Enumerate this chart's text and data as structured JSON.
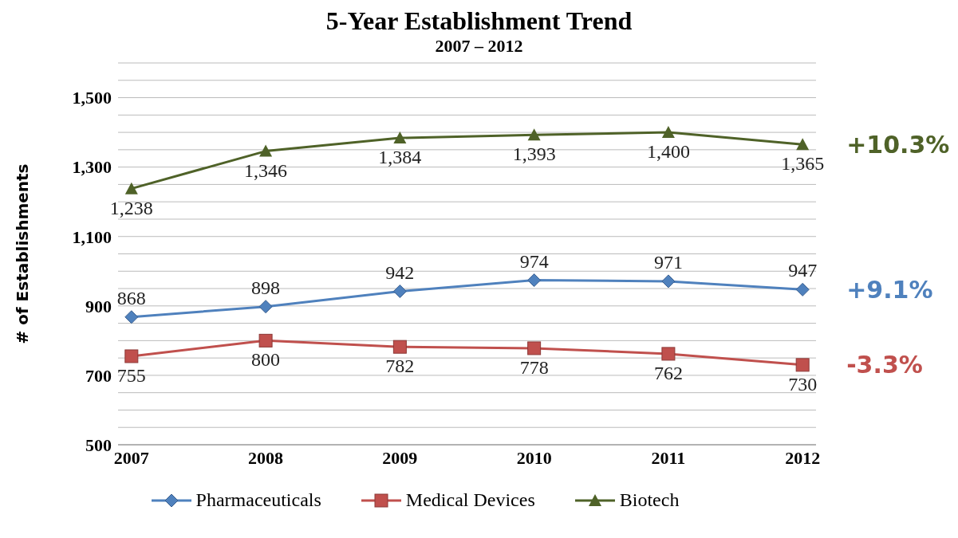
{
  "chart_data": {
    "type": "line",
    "title": "5-Year Establishment Trend",
    "subtitle": "2007 – 2012",
    "ylabel": "# of Establishments",
    "categories": [
      "2007",
      "2008",
      "2009",
      "2010",
      "2011",
      "2012"
    ],
    "series": [
      {
        "name": "Pharmaceuticals",
        "color": "#4f81bd",
        "marker": "diamond",
        "values": [
          868,
          898,
          942,
          974,
          971,
          947
        ],
        "value_labels": [
          "868",
          "898",
          "942",
          "974",
          "971",
          "947"
        ]
      },
      {
        "name": "Medical Devices",
        "color": "#c0504d",
        "marker": "square",
        "values": [
          755,
          800,
          782,
          778,
          762,
          730
        ],
        "value_labels": [
          "755",
          "800",
          "782",
          "778",
          "762",
          "730"
        ]
      },
      {
        "name": "Biotech",
        "color": "#4f6228",
        "marker": "triangle",
        "values": [
          1238,
          1346,
          1384,
          1393,
          1400,
          1365
        ],
        "value_labels": [
          "1,238",
          "1,346",
          "1,384",
          "1,393",
          "1,400",
          "1,365"
        ]
      }
    ],
    "ylim": [
      500,
      1600
    ],
    "yticks": [
      500,
      {
        "value": 550,
        "label": null
      },
      {
        "value": 600,
        "label": null
      },
      {
        "value": 650,
        "label": null
      },
      700,
      {
        "value": 750,
        "label": null
      },
      {
        "value": 800,
        "label": null
      },
      {
        "value": 850,
        "label": null
      },
      900,
      {
        "value": 950,
        "label": null
      },
      {
        "value": 1000,
        "label": null
      },
      {
        "value": 1050,
        "label": null
      },
      {
        "value": 1100,
        "label": "1,100"
      },
      {
        "value": 1150,
        "label": null
      },
      {
        "value": 1200,
        "label": null
      },
      {
        "value": 1250,
        "label": null
      },
      {
        "value": 1300,
        "label": "1,300"
      },
      {
        "value": 1350,
        "label": null
      },
      {
        "value": 1400,
        "label": null
      },
      {
        "value": 1450,
        "label": null
      },
      {
        "value": 1500,
        "label": "1,500"
      },
      {
        "value": 1550,
        "label": null
      },
      {
        "value": 1600,
        "label": null
      }
    ],
    "grid": "y",
    "legend": "bottom",
    "annotations": [
      {
        "text": "+9.1%",
        "x": "2012",
        "y": 947
      },
      {
        "text": "-3.3%",
        "x": "2012",
        "y": 730
      },
      {
        "text": "+10.3%",
        "x": "2012",
        "y": 1365
      }
    ]
  }
}
